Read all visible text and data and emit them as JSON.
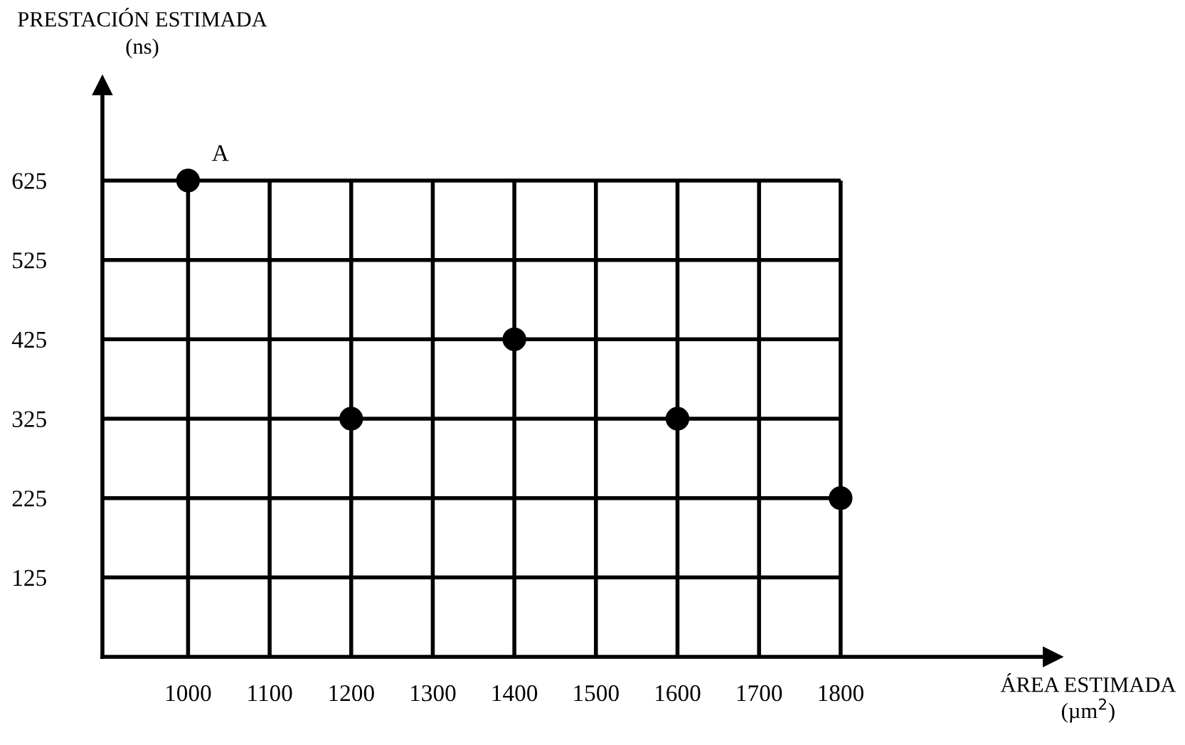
{
  "chart_data": {
    "type": "scatter",
    "xlabel": "ÁREA ESTIMADA\n(µm$^{2}$)",
    "ylabel": "PRESTACIÓN ESTIMADA\n(ns)",
    "x": [
      1000,
      1200,
      1400,
      1600,
      1800
    ],
    "series": [
      {
        "color": "#000000",
        "values": [
          625,
          325,
          425,
          325,
          225
        ]
      }
    ],
    "marker": "circle",
    "grid": true,
    "xlim": [
      895,
      2060
    ],
    "ylim": [
      25,
      745
    ],
    "xticks": [
      1000,
      1100,
      1200,
      1300,
      1400,
      1500,
      1600,
      1700,
      1800
    ],
    "yticks": [
      125,
      225,
      325,
      425,
      525,
      625
    ],
    "annotations": [
      {
        "text": "A",
        "x": 1000,
        "y": 625
      }
    ]
  }
}
